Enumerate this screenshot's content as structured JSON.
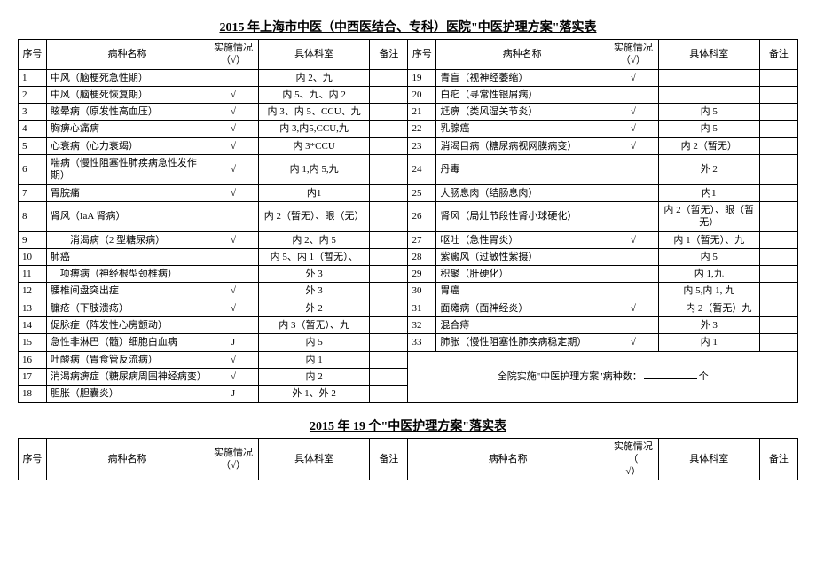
{
  "title1": "2015 年上海市中医（中西医结合、专科）医院\"中医护理方案\"落实表",
  "title2": "2015 年 19 个\"中医护理方案\"落实表",
  "headers": {
    "seq": "序号",
    "name": "病种名称",
    "impl": "实施情况（√）",
    "dept": "具体科室",
    "note": "备注",
    "seqShort": "序号"
  },
  "summary": {
    "text1": "全院实施\"中医护理方案\"病种数：",
    "text2": "个"
  },
  "left": [
    {
      "seq": "1",
      "name": "中风（脑梗死急性期）",
      "impl": "",
      "dept": "内 2、九"
    },
    {
      "seq": "2",
      "name": "中风（脑梗死恢复期）",
      "impl": "√",
      "dept": "内 5、九、内 2"
    },
    {
      "seq": "3",
      "name": "眩晕病（原发性高血压）",
      "impl": "√",
      "dept": "内 3、内 5、CCU、九"
    },
    {
      "seq": "4",
      "name": "胸痹心痛病",
      "impl": "√",
      "dept": "内 3,内5,CCU,九"
    },
    {
      "seq": "5",
      "name": "心衰病（心力衰竭）",
      "impl": "√",
      "dept": "内 3*CCU"
    },
    {
      "seq": "6",
      "name": "喘病（慢性阻塞性肺疾病急性发作期）",
      "impl": "√",
      "dept": "内 1,内 5,九"
    },
    {
      "seq": "7",
      "name": "胃脘痛",
      "impl": "√",
      "dept": "内1"
    },
    {
      "seq": "8",
      "name": "肾风（IaA 肾病）",
      "impl": "",
      "dept": "内 2（暂无）、眼（无）"
    },
    {
      "seq": "9",
      "name": "　　消渴病（2 型糖尿病）",
      "impl": "√",
      "dept": "内 2、内 5"
    },
    {
      "seq": "10",
      "name": "肺癌",
      "impl": "",
      "dept": "内 5、内 1（暂无）、"
    },
    {
      "seq": "11",
      "name": "　项痹病（神经根型颈椎病）",
      "impl": "",
      "dept": "外 3"
    },
    {
      "seq": "12",
      "name": "腰椎间盘突出症",
      "impl": "√",
      "dept": "外 3"
    },
    {
      "seq": "13",
      "name": "臁疮（下肢溃疡）",
      "impl": "√",
      "dept": "外 2"
    },
    {
      "seq": "14",
      "name": "促脉症（阵发性心房颤动）",
      "impl": "",
      "dept": "内 3（暂无）、九"
    },
    {
      "seq": "15",
      "name": "急性非淋巴（髓）细胞白血病",
      "impl": "J",
      "dept": "内 5"
    },
    {
      "seq": "16",
      "name": "吐酸病（胃食管反流病）",
      "impl": "√",
      "dept": "内 1"
    },
    {
      "seq": "17",
      "name": "消渴病痹症（糖尿病周围神经病变）",
      "impl": "√",
      "dept": "内 2"
    },
    {
      "seq": "18",
      "name": "胆胀（胆囊炎）",
      "impl": "J",
      "dept": "外 1、外 2"
    }
  ],
  "right": [
    {
      "seq": "19",
      "name": "青盲（视神经萎缩）",
      "impl": "√",
      "dept": ""
    },
    {
      "seq": "20",
      "name": "白疕（寻常性银屑病）",
      "impl": "",
      "dept": ""
    },
    {
      "seq": "21",
      "name": "尪痹（类风湿关节炎）",
      "impl": "√",
      "dept": "内 5"
    },
    {
      "seq": "22",
      "name": "乳腺癌",
      "impl": "√",
      "dept": "内 5"
    },
    {
      "seq": "23",
      "name": "消渴目病（糖尿病视网膜病变）",
      "impl": "√",
      "dept": "内 2（暂无）"
    },
    {
      "seq": "24",
      "name": "丹毒",
      "impl": "",
      "dept": "外 2"
    },
    {
      "seq": "25",
      "name": "大肠息肉（结肠息肉）",
      "impl": "",
      "dept": "内1"
    },
    {
      "seq": "26",
      "name": "肾风（局灶节段性肾小球硬化）",
      "impl": "",
      "dept": "内 2（暂无）、眼（暂无）"
    },
    {
      "seq": "27",
      "name": "呕吐（急性胃炎）",
      "impl": "√",
      "dept": "内 1（暂无）、九"
    },
    {
      "seq": "28",
      "name": "紫癜风（过敏性紫摄）",
      "impl": "",
      "dept": "内 5"
    },
    {
      "seq": "29",
      "name": "积聚（肝硬化）",
      "impl": "",
      "dept": "内 1,九"
    },
    {
      "seq": "30",
      "name": "胃癌",
      "impl": "",
      "dept": "内 5,内 1, 九"
    },
    {
      "seq": "31",
      "name": "面瘫病（面神经炎）",
      "impl": "√",
      "dept": "　　内 2（暂无）九"
    },
    {
      "seq": "32",
      "name": "混合痔",
      "impl": "",
      "dept": "外 3"
    },
    {
      "seq": "33",
      "name": "肺胀（慢性阻塞性肺疾病稳定期）",
      "impl": "√",
      "dept": "内 1"
    }
  ]
}
